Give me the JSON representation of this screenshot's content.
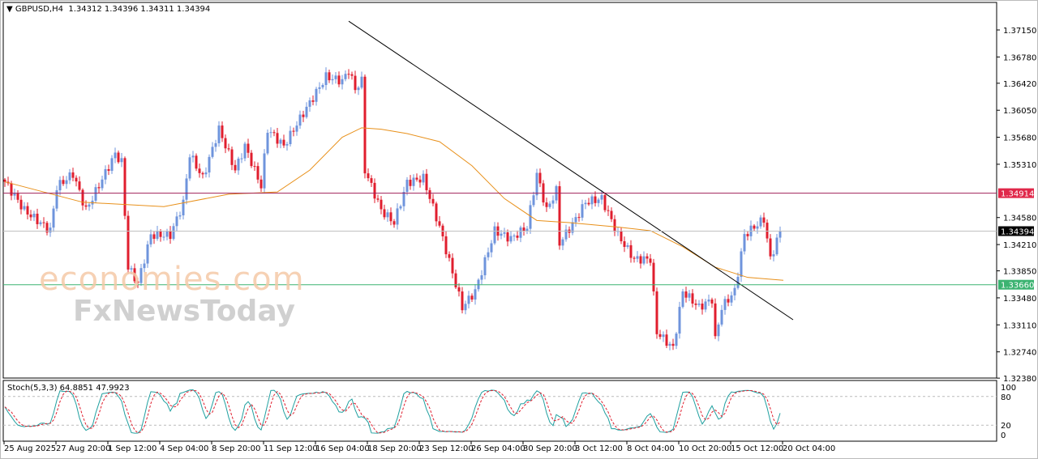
{
  "header": {
    "symbol": "GBPUSD,H4",
    "ohlc": "1.34312 1.34396 1.34311 1.34394"
  },
  "stoch": {
    "label": "Stoch(5,3,3)",
    "main": "64.8851",
    "signal": "47.9923",
    "levels": [
      "100",
      "80",
      "20",
      "0"
    ]
  },
  "watermark": {
    "line1": "economies.com",
    "line2": "FxNewsToday"
  },
  "colors": {
    "bull": "#6f94dc",
    "bear": "#e01e2e",
    "ma": "#e8901a",
    "resistance": "#a0205a",
    "support": "#3cb371",
    "price": "#000000",
    "stoch_main": "#20a0a0",
    "stoch_signal": "#e01e2e"
  },
  "chart_data": {
    "type": "candlestick",
    "symbol": "GBPUSD",
    "timeframe": "H4",
    "ylim": [
      1.3238,
      1.3735
    ],
    "y_ticks": [
      "1.37150",
      "1.36780",
      "1.36420",
      "1.36050",
      "1.35680",
      "1.35310",
      "1.34580",
      "1.34210",
      "1.33850",
      "1.33480",
      "1.33110",
      "1.32740",
      "1.32380"
    ],
    "x_ticks": [
      "25 Aug 2025",
      "27 Aug 20:00",
      "1 Sep 12:00",
      "4 Sep 04:00",
      "8 Sep 20:00",
      "11 Sep 12:00",
      "16 Sep 04:00",
      "18 Sep 20:00",
      "23 Sep 12:00",
      "26 Sep 04:00",
      "30 Sep 20:00",
      "3 Oct 12:00",
      "8 Oct 04:00",
      "10 Oct 20:00",
      "15 Oct 12:00",
      "20 Oct 04:00"
    ],
    "close_path": [
      [
        0,
        1.3507
      ],
      [
        6,
        1.3468
      ],
      [
        14,
        1.344
      ],
      [
        16,
        1.35
      ],
      [
        21,
        1.3518
      ],
      [
        25,
        1.3468
      ],
      [
        34,
        1.3545
      ],
      [
        36,
        1.3534
      ],
      [
        38,
        1.339
      ],
      [
        41,
        1.3368
      ],
      [
        45,
        1.3434
      ],
      [
        51,
        1.3434
      ],
      [
        55,
        1.3478
      ],
      [
        57,
        1.3545
      ],
      [
        61,
        1.3512
      ],
      [
        66,
        1.3579
      ],
      [
        71,
        1.3523
      ],
      [
        74,
        1.3556
      ],
      [
        79,
        1.3501
      ],
      [
        81,
        1.3579
      ],
      [
        86,
        1.3556
      ],
      [
        92,
        1.3601
      ],
      [
        99,
        1.3651
      ],
      [
        104,
        1.3645
      ],
      [
        106,
        1.366
      ],
      [
        108,
        1.3634
      ],
      [
        110,
        1.3645
      ],
      [
        110,
        1.3534
      ],
      [
        116,
        1.3468
      ],
      [
        120,
        1.3451
      ],
      [
        124,
        1.3506
      ],
      [
        129,
        1.3512
      ],
      [
        134,
        1.3445
      ],
      [
        141,
        1.3335
      ],
      [
        145,
        1.3357
      ],
      [
        149,
        1.3412
      ],
      [
        151,
        1.344
      ],
      [
        156,
        1.3429
      ],
      [
        161,
        1.3445
      ],
      [
        164,
        1.3518
      ],
      [
        167,
        1.3468
      ],
      [
        170,
        1.3495
      ],
      [
        171,
        1.3423
      ],
      [
        176,
        1.3456
      ],
      [
        179,
        1.3479
      ],
      [
        184,
        1.3484
      ],
      [
        189,
        1.3434
      ],
      [
        194,
        1.3401
      ],
      [
        199,
        1.3401
      ],
      [
        201,
        1.3301
      ],
      [
        206,
        1.3279
      ],
      [
        209,
        1.3357
      ],
      [
        214,
        1.3335
      ],
      [
        218,
        1.3346
      ],
      [
        218,
        1.3268
      ],
      [
        221,
        1.3335
      ],
      [
        225,
        1.3357
      ],
      [
        228,
        1.3434
      ],
      [
        234,
        1.3456
      ],
      [
        236,
        1.3401
      ],
      [
        239,
        1.3439
      ]
    ],
    "moving_average": [
      [
        0,
        1.3507
      ],
      [
        24,
        1.3479
      ],
      [
        49,
        1.3473
      ],
      [
        69,
        1.349
      ],
      [
        84,
        1.3493
      ],
      [
        94,
        1.3523
      ],
      [
        104,
        1.3568
      ],
      [
        110,
        1.3581
      ],
      [
        116,
        1.3579
      ],
      [
        124,
        1.3573
      ],
      [
        134,
        1.3562
      ],
      [
        144,
        1.3529
      ],
      [
        154,
        1.3484
      ],
      [
        164,
        1.3454
      ],
      [
        174,
        1.3451
      ],
      [
        189,
        1.3445
      ],
      [
        199,
        1.344
      ],
      [
        209,
        1.3418
      ],
      [
        219,
        1.339
      ],
      [
        229,
        1.3376
      ],
      [
        240,
        1.3372
      ]
    ],
    "trendline": [
      [
        106,
        1.3727
      ],
      [
        243,
        1.3318
      ]
    ],
    "horizontal_levels": [
      {
        "price": "1.34914",
        "type": "resistance"
      },
      {
        "price": "1.34394",
        "type": "current"
      },
      {
        "price": "1.33660",
        "type": "support"
      }
    ]
  }
}
